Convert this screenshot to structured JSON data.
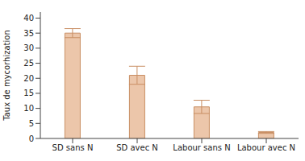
{
  "chart_data": {
    "type": "bar",
    "y_label": "Taux de mycorhization",
    "categories": [
      "SD sans N",
      "SD avec N",
      "Labour sans N",
      "Labour avec N"
    ],
    "values": [
      35,
      21,
      10.5,
      2
    ],
    "errors": [
      1.5,
      3,
      2.2,
      0.3
    ],
    "color": "#ecc6aa",
    "ylim": [
      0,
      42
    ],
    "yticks": [
      0,
      5,
      10,
      15,
      20,
      25,
      30,
      35,
      40
    ],
    "grid": false
  }
}
